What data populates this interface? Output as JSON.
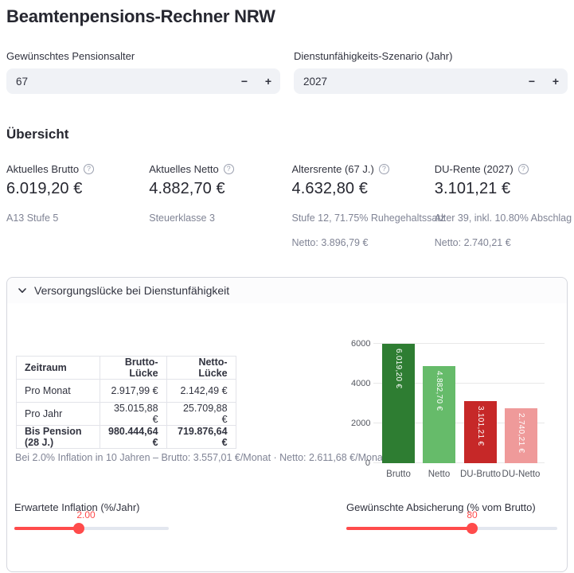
{
  "title": "Beamtenpensions-Rechner NRW",
  "ui": {
    "minus": "−",
    "plus": "+",
    "help_glyph": "?"
  },
  "inputs": [
    {
      "label": "Gewünschtes Pensionsalter",
      "value": "67"
    },
    {
      "label": "Dienstunfähigkeits-Szenario (Jahr)",
      "value": "2027"
    }
  ],
  "overview": {
    "heading": "Übersicht",
    "metrics": [
      {
        "label": "Aktuelles Brutto",
        "value": "6.019,20 €",
        "caption": "A13 Stufe 5",
        "caption2": ""
      },
      {
        "label": "Aktuelles Netto",
        "value": "4.882,70 €",
        "caption": "Steuerklasse 3",
        "caption2": ""
      },
      {
        "label": "Altersrente (67 J.)",
        "value": "4.632,80 €",
        "caption": "Stufe 12, 71.75% Ruhegehaltssatz",
        "caption2": "Netto: 3.896,79 €"
      },
      {
        "label": "DU-Rente (2027)",
        "value": "3.101,21 €",
        "caption": "Alter 39, inkl. 10.80% Abschlag",
        "caption2": "Netto: 2.740,21 €"
      }
    ]
  },
  "expander": {
    "title": "Versorgungslücke bei Dienstunfähigkeit",
    "table": {
      "headers": [
        "Zeitraum",
        "Brutto-Lücke",
        "Netto-Lücke"
      ],
      "rows": [
        [
          "Pro Monat",
          "2.917,99 €",
          "2.142,49 €"
        ],
        [
          "Pro Jahr",
          "35.015,88 €",
          "25.709,88 €"
        ],
        [
          "Bis Pension (28 J.)",
          "980.444,64 €",
          "719.876,64 €"
        ]
      ]
    },
    "caption": "Bei 2.0% Inflation in 10 Jahren – Brutto: 3.557,01 €/Monat · Netto: 2.611,68 €/Monat"
  },
  "chart_data": {
    "type": "bar",
    "categories": [
      "Brutto",
      "Netto",
      "DU-Brutto",
      "DU-Netto"
    ],
    "values": [
      6019.2,
      4882.7,
      3101.21,
      2740.21
    ],
    "bar_labels": [
      "6.019,20 €",
      "4.882,70 €",
      "3.101,21 €",
      "2.740,21 €"
    ],
    "colors": [
      "#2e7d32",
      "#66bb6a",
      "#c62828",
      "#ef9a9a"
    ],
    "title": "",
    "xlabel": "",
    "ylabel": "",
    "ylim": [
      0,
      6000
    ],
    "yticks": [
      0,
      2000,
      4000,
      6000
    ],
    "grid": true,
    "legend": false
  },
  "sliders": [
    {
      "label": "Erwartete Inflation (%/Jahr)",
      "value": "2.00"
    },
    {
      "label": "Gewünschte Absicherung (% vom Brutto)",
      "value": "80"
    }
  ],
  "colors": {
    "accent": "#ff4b4b",
    "input_bg": "#f0f2f6",
    "caption": "#808495"
  }
}
